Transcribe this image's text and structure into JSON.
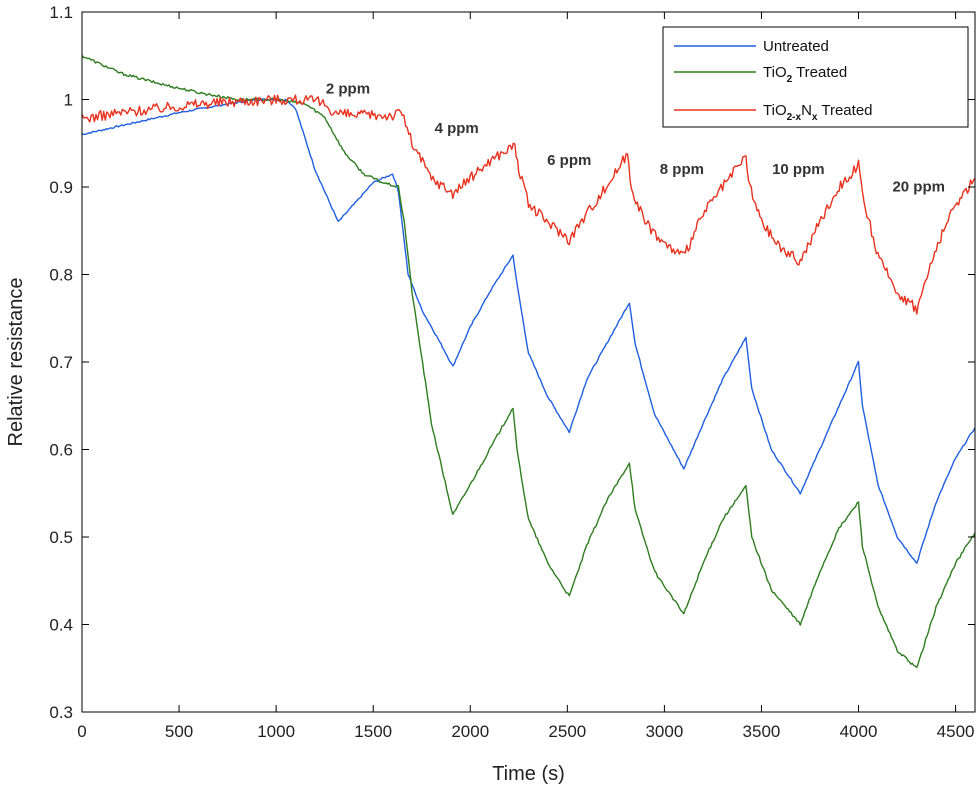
{
  "chart_data": {
    "type": "line",
    "title": "",
    "xlabel": "Time (s)",
    "ylabel": "Relative resistance",
    "xlim": [
      0,
      4600
    ],
    "ylim": [
      0.3,
      1.1
    ],
    "xticks": [
      0,
      500,
      1000,
      1500,
      2000,
      2500,
      3000,
      3500,
      4000,
      4500
    ],
    "yticks": [
      0.3,
      0.4,
      0.5,
      0.6,
      0.7,
      0.8,
      0.9,
      1,
      1.1
    ],
    "xtick_labels": [
      "0",
      "500",
      "1000",
      "1500",
      "2000",
      "2500",
      "3000",
      "3500",
      "4000",
      "4500"
    ],
    "ytick_labels": [
      "0.3",
      "0.4",
      "0.5",
      "0.6",
      "0.7",
      "0.8",
      "0.9",
      "1",
      "1.1"
    ],
    "grid": false,
    "legend_position": "top-right",
    "annotations": [
      {
        "text": "2 ppm",
        "x": 1370,
        "y": 1.007
      },
      {
        "text": "4 ppm",
        "x": 1930,
        "y": 0.962
      },
      {
        "text": "6 ppm",
        "x": 2510,
        "y": 0.925
      },
      {
        "text": "8 ppm",
        "x": 3090,
        "y": 0.915
      },
      {
        "text": "10 ppm",
        "x": 3690,
        "y": 0.915
      },
      {
        "text": "20 ppm",
        "x": 4310,
        "y": 0.895
      }
    ],
    "series": [
      {
        "name": "Untreated",
        "label": {
          "base": "Untreated"
        },
        "color": "#1f5fe0",
        "x": [
          0,
          100,
          300,
          500,
          700,
          900,
          1050,
          1100,
          1200,
          1320,
          1400,
          1500,
          1600,
          1630,
          1680,
          1750,
          1850,
          1910,
          2000,
          2100,
          2220,
          2240,
          2300,
          2400,
          2510,
          2600,
          2700,
          2820,
          2850,
          2950,
          3100,
          3200,
          3300,
          3420,
          3450,
          3550,
          3700,
          3800,
          3900,
          4000,
          4020,
          4100,
          4200,
          4300,
          4400,
          4500,
          4600
        ],
        "y": [
          0.96,
          0.965,
          0.975,
          0.985,
          0.993,
          1.0,
          1.0,
          0.99,
          0.92,
          0.86,
          0.88,
          0.905,
          0.915,
          0.895,
          0.8,
          0.76,
          0.72,
          0.695,
          0.74,
          0.78,
          0.822,
          0.79,
          0.71,
          0.66,
          0.62,
          0.68,
          0.72,
          0.768,
          0.72,
          0.64,
          0.578,
          0.63,
          0.68,
          0.728,
          0.67,
          0.6,
          0.55,
          0.6,
          0.65,
          0.7,
          0.65,
          0.56,
          0.5,
          0.47,
          0.54,
          0.59,
          0.625
        ]
      },
      {
        "name": "TiO2 Treated",
        "label": {
          "base": "TiO",
          "sub": "2",
          "rest": " Treated"
        },
        "color": "#2e7d1f",
        "x": [
          0,
          100,
          200,
          400,
          600,
          800,
          1000,
          1150,
          1250,
          1350,
          1450,
          1550,
          1630,
          1660,
          1700,
          1800,
          1910,
          2000,
          2100,
          2220,
          2240,
          2300,
          2400,
          2510,
          2600,
          2700,
          2820,
          2850,
          2950,
          3100,
          3200,
          3300,
          3420,
          3450,
          3550,
          3700,
          3800,
          3900,
          4000,
          4020,
          4100,
          4200,
          4300,
          4400,
          4500,
          4600
        ],
        "y": [
          1.05,
          1.04,
          1.03,
          1.018,
          1.008,
          1.0,
          1.0,
          0.995,
          0.98,
          0.94,
          0.915,
          0.905,
          0.9,
          0.86,
          0.78,
          0.63,
          0.525,
          0.56,
          0.6,
          0.648,
          0.6,
          0.52,
          0.47,
          0.432,
          0.49,
          0.54,
          0.585,
          0.53,
          0.46,
          0.412,
          0.47,
          0.52,
          0.558,
          0.5,
          0.44,
          0.4,
          0.46,
          0.51,
          0.54,
          0.49,
          0.42,
          0.37,
          0.35,
          0.42,
          0.47,
          0.505
        ]
      },
      {
        "name": "TiO2-xNx Treated",
        "label": {
          "base": "TiO",
          "sub": "2-x",
          "mid": "N",
          "sub2": "x",
          "rest": " Treated"
        },
        "color": "#e8321f",
        "x": [
          0,
          200,
          400,
          600,
          800,
          1000,
          1100,
          1200,
          1250,
          1300,
          1400,
          1500,
          1600,
          1650,
          1700,
          1800,
          1910,
          2000,
          2100,
          2230,
          2250,
          2300,
          2400,
          2510,
          2600,
          2700,
          2810,
          2830,
          2900,
          3000,
          3100,
          3200,
          3300,
          3420,
          3440,
          3500,
          3600,
          3700,
          3800,
          3900,
          4000,
          4020,
          4100,
          4200,
          4300,
          4400,
          4500,
          4600
        ],
        "y": [
          0.978,
          0.985,
          0.99,
          0.995,
          0.998,
          1.0,
          1.0,
          0.998,
          0.995,
          0.985,
          0.982,
          0.982,
          0.982,
          0.985,
          0.95,
          0.91,
          0.893,
          0.91,
          0.93,
          0.948,
          0.92,
          0.88,
          0.86,
          0.84,
          0.87,
          0.9,
          0.938,
          0.9,
          0.86,
          0.835,
          0.82,
          0.87,
          0.9,
          0.935,
          0.9,
          0.86,
          0.83,
          0.815,
          0.86,
          0.9,
          0.925,
          0.89,
          0.82,
          0.78,
          0.76,
          0.83,
          0.88,
          0.91
        ]
      }
    ]
  }
}
